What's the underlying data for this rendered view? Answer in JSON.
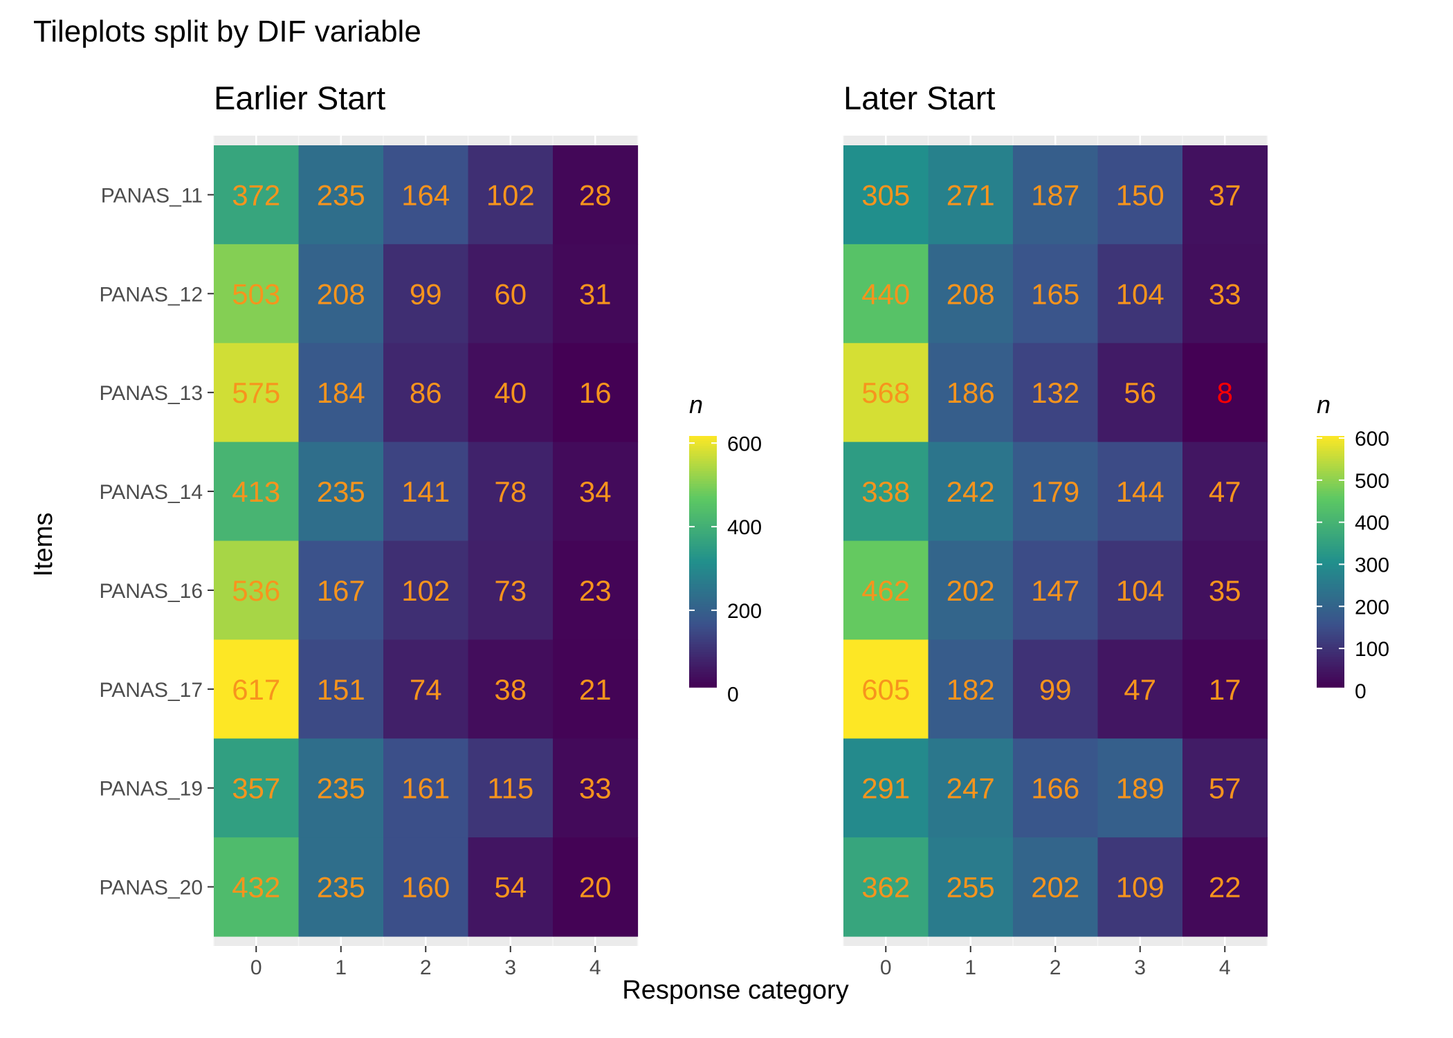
{
  "title": "Tileplots split by DIF variable",
  "chart_data": {
    "type": "heatmap",
    "title": "Tileplots split by DIF variable",
    "xlabel": "Response category",
    "ylabel": "Items",
    "categories": [
      "0",
      "1",
      "2",
      "3",
      "4"
    ],
    "items": [
      "PANAS_11",
      "PANAS_12",
      "PANAS_13",
      "PANAS_14",
      "PANAS_16",
      "PANAS_17",
      "PANAS_19",
      "PANAS_20"
    ],
    "label_color": "#F7941D",
    "low_count_label_color": "#FF0000",
    "low_count_threshold": 10,
    "gradient_stops": [
      "#440154",
      "#3B528B",
      "#21908C",
      "#5DC863",
      "#FDE725"
    ],
    "panels": [
      {
        "title": "Earlier Start",
        "legend_title": "n",
        "legend_ticks": [
          0,
          200,
          400,
          600
        ],
        "fill_limits": [
          16,
          617
        ],
        "values": [
          [
            372,
            235,
            164,
            102,
            28
          ],
          [
            503,
            208,
            99,
            60,
            31
          ],
          [
            575,
            184,
            86,
            40,
            16
          ],
          [
            413,
            235,
            141,
            78,
            34
          ],
          [
            536,
            167,
            102,
            73,
            23
          ],
          [
            617,
            151,
            74,
            38,
            21
          ],
          [
            357,
            235,
            161,
            115,
            33
          ],
          [
            432,
            235,
            160,
            54,
            20
          ]
        ]
      },
      {
        "title": "Later Start",
        "legend_title": "n",
        "legend_ticks": [
          0,
          100,
          200,
          300,
          400,
          500,
          600
        ],
        "fill_limits": [
          8,
          605
        ],
        "values": [
          [
            305,
            271,
            187,
            150,
            37
          ],
          [
            440,
            208,
            165,
            104,
            33
          ],
          [
            568,
            186,
            132,
            56,
            8
          ],
          [
            338,
            242,
            179,
            144,
            47
          ],
          [
            462,
            202,
            147,
            104,
            35
          ],
          [
            605,
            182,
            99,
            47,
            17
          ],
          [
            291,
            247,
            166,
            189,
            57
          ],
          [
            362,
            255,
            202,
            109,
            22
          ]
        ]
      }
    ]
  }
}
